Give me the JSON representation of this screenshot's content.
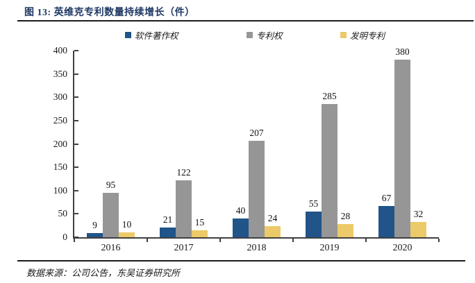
{
  "page": {
    "title": "图 13:  英维克专利数量持续增长（件）",
    "source": "数据来源：公司公告，东吴证券研究所"
  },
  "chart_data": {
    "type": "bar",
    "title": "图 13:  英维克专利数量持续增长（件）",
    "categories": [
      "2016",
      "2017",
      "2018",
      "2019",
      "2020"
    ],
    "series": [
      {
        "name": "软件著作权",
        "color": "#215489",
        "values": [
          9,
          21,
          40,
          55,
          67
        ]
      },
      {
        "name": "专利权",
        "color": "#969696",
        "values": [
          95,
          122,
          207,
          285,
          380
        ]
      },
      {
        "name": "发明专利",
        "color": "#ECCA69",
        "values": [
          10,
          15,
          24,
          28,
          32
        ]
      }
    ],
    "ylim": [
      0,
      400
    ],
    "ytick_step": 50,
    "ytick_labels": [
      "0",
      "50",
      "100",
      "150",
      "200",
      "250",
      "300",
      "350",
      "400"
    ],
    "grid": false,
    "legend_position": "top",
    "data_labels": true,
    "axis_color": "#404040"
  }
}
